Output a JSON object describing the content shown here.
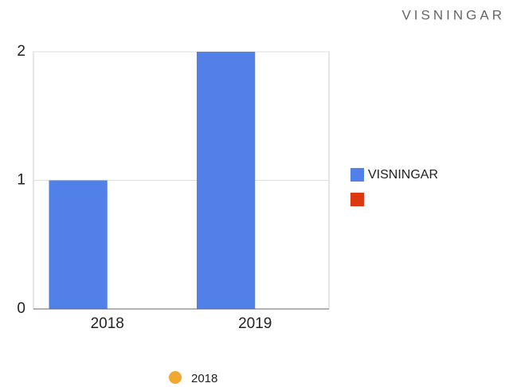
{
  "chart_data": {
    "type": "bar",
    "title": "VISNINGAR",
    "categories": [
      "2018",
      "2019"
    ],
    "series": [
      {
        "name": "VISNINGAR",
        "color": "#5080e8",
        "values": [
          1,
          2
        ]
      },
      {
        "color": "#dc3912",
        "values": [
          null,
          null
        ]
      }
    ],
    "ylim": [
      0,
      2
    ],
    "yticks": [
      0,
      1,
      2
    ],
    "grid": true,
    "legend": "right"
  },
  "footer": {
    "label": "2018",
    "color": "#f0a92e"
  }
}
